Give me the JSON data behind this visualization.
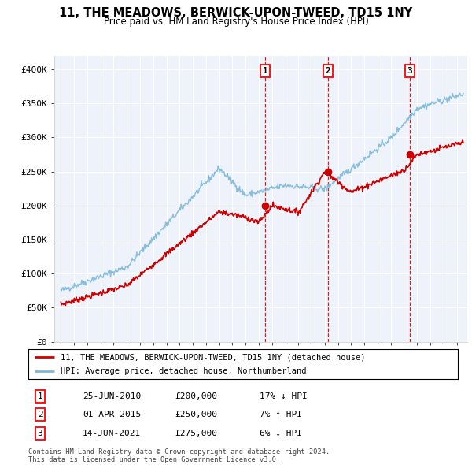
{
  "title_line1": "11, THE MEADOWS, BERWICK-UPON-TWEED, TD15 1NY",
  "title_line2": "Price paid vs. HM Land Registry's House Price Index (HPI)",
  "ylim": [
    0,
    420000
  ],
  "yticks": [
    0,
    50000,
    100000,
    150000,
    200000,
    250000,
    300000,
    350000,
    400000
  ],
  "ytick_labels": [
    "£0",
    "£50K",
    "£100K",
    "£150K",
    "£200K",
    "£250K",
    "£300K",
    "£350K",
    "£400K"
  ],
  "hpi_color": "#7db8d8",
  "price_color": "#cc0000",
  "vline_color": "#cc0000",
  "background_color": "#eef2fa",
  "xlim_left": 1994.5,
  "xlim_right": 2025.8,
  "transactions": [
    {
      "date": 2010.48,
      "price": 200000,
      "label": "1"
    },
    {
      "date": 2015.25,
      "price": 250000,
      "label": "2"
    },
    {
      "date": 2021.45,
      "price": 275000,
      "label": "3"
    }
  ],
  "legend_line1": "11, THE MEADOWS, BERWICK-UPON-TWEED, TD15 1NY (detached house)",
  "legend_line2": "HPI: Average price, detached house, Northumberland",
  "table_entries": [
    {
      "num": "1",
      "date": "25-JUN-2010",
      "price": "£200,000",
      "hpi": "17% ↓ HPI"
    },
    {
      "num": "2",
      "date": "01-APR-2015",
      "price": "£250,000",
      "hpi": "7% ↑ HPI"
    },
    {
      "num": "3",
      "date": "14-JUN-2021",
      "price": "£275,000",
      "hpi": "6% ↓ HPI"
    }
  ],
  "footer": "Contains HM Land Registry data © Crown copyright and database right 2024.\nThis data is licensed under the Open Government Licence v3.0."
}
